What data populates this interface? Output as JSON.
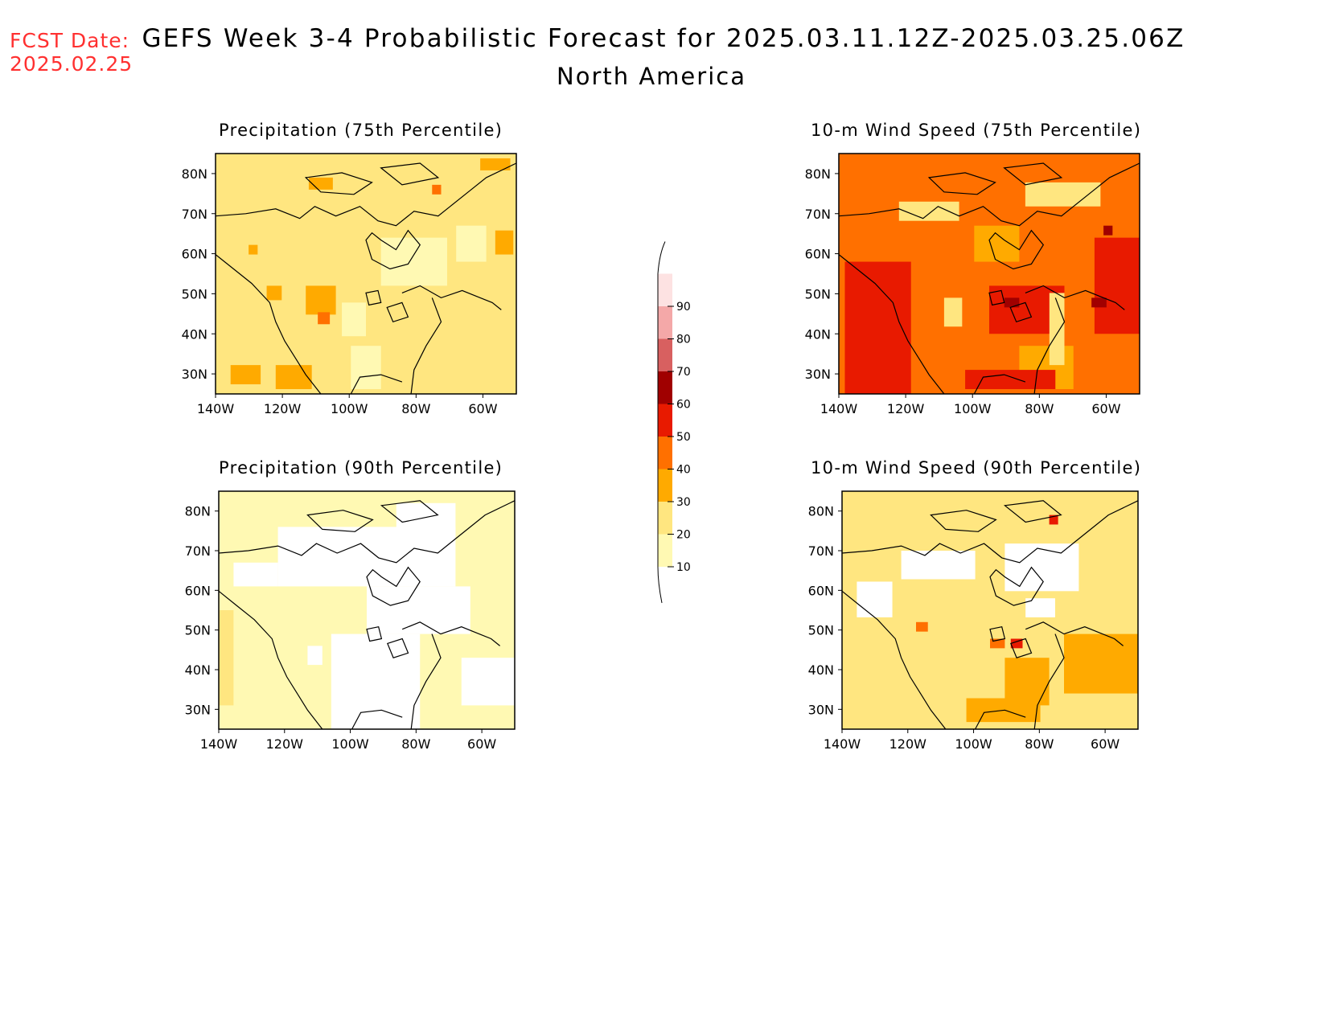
{
  "header": {
    "fcst_label": "FCST Date:",
    "fcst_date": "2025.02.25",
    "title": "GEFS Week 3-4 Probabilistic Forecast for 2025.03.11.12Z-2025.03.25.06Z",
    "region": "North America"
  },
  "axes": {
    "lat_ticks": [
      "80N",
      "70N",
      "60N",
      "50N",
      "40N",
      "30N"
    ],
    "lon_ticks": [
      "140W",
      "120W",
      "100W",
      "80W",
      "60W"
    ]
  },
  "panels": [
    {
      "id": "precip75",
      "title": "Precipitation (75th Percentile)",
      "dominant_level": 1
    },
    {
      "id": "wind75",
      "title": "10-m Wind Speed (75th Percentile)",
      "dominant_level": 3
    },
    {
      "id": "precip90",
      "title": "Precipitation (90th Percentile)",
      "dominant_level": 0
    },
    {
      "id": "wind90",
      "title": "10-m Wind Speed (90th Percentile)",
      "dominant_level": 1
    }
  ],
  "colorbar": {
    "labels": [
      "10",
      "20",
      "30",
      "40",
      "50",
      "60",
      "70",
      "80",
      "90"
    ],
    "colors": [
      "#fff9b3",
      "#ffe680",
      "#ffaa00",
      "#ff7000",
      "#e81a00",
      "#a00000",
      "#d86060",
      "#f4a8a8",
      "#fde2e2"
    ]
  }
}
